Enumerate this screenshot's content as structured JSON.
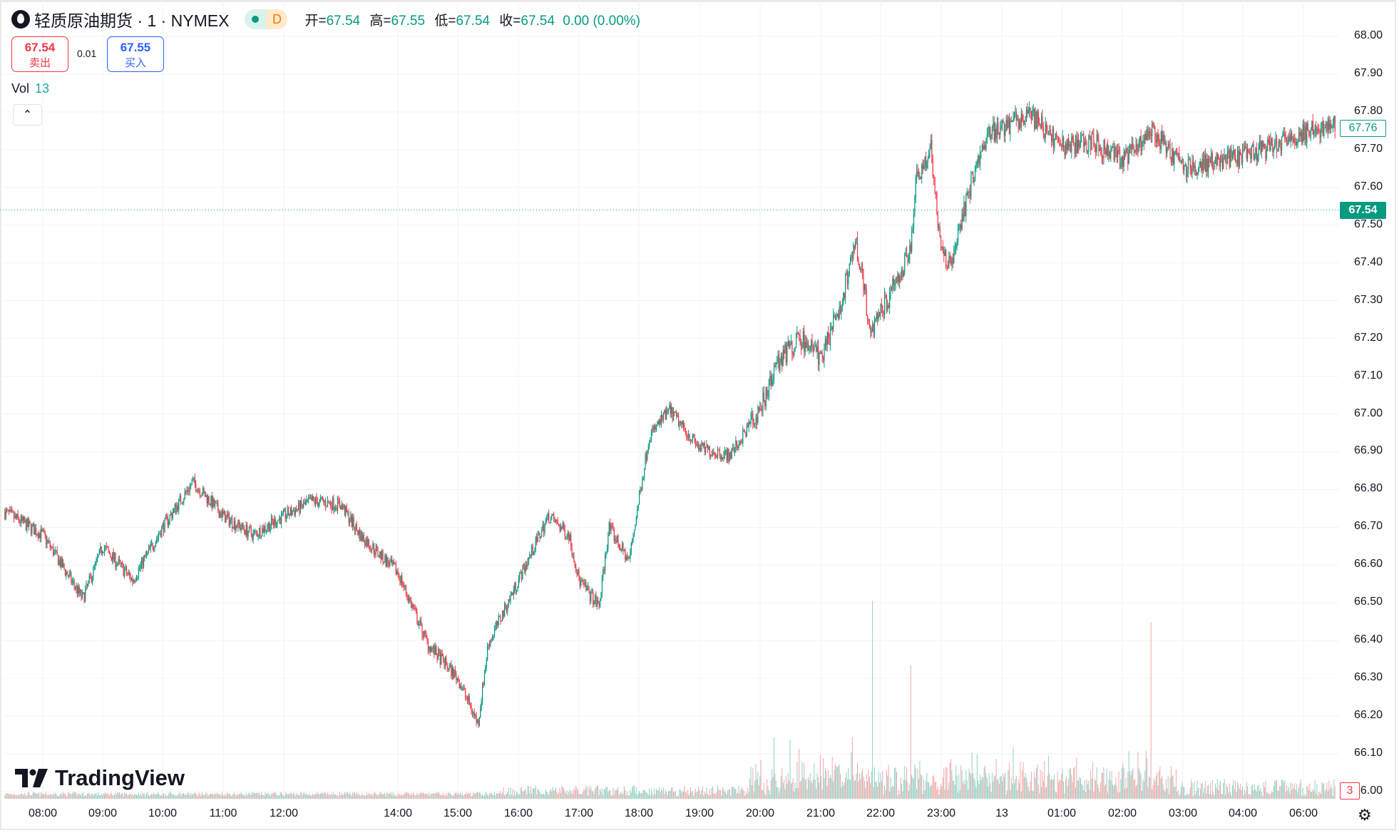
{
  "header": {
    "symbol_title": "轻质原油期货 · 1 · NYMEX",
    "market_status_icon": "market-open-dot",
    "data_badge": "D",
    "ohlc": [
      {
        "key": "开=",
        "value": "67.54"
      },
      {
        "key": "高=",
        "value": "67.55"
      },
      {
        "key": "低=",
        "value": "67.54"
      },
      {
        "key": "收=",
        "value": "67.54"
      }
    ],
    "change": "0.00 (0.00%)"
  },
  "trade": {
    "sell_price": "67.54",
    "sell_label": "卖出",
    "spread": "0.01",
    "buy_price": "67.55",
    "buy_label": "买入"
  },
  "volume_legend": {
    "label": "Vol",
    "value": "13"
  },
  "collapse_icon": "chevron-up-icon",
  "brand": "TradingView",
  "colors": {
    "up": "#089981",
    "down": "#f23645",
    "vol_up": "#8fd0c4",
    "vol_down": "#f2a7a7",
    "accent": "#089981"
  },
  "price_axis": [
    "68.00",
    "67.90",
    "67.80",
    "67.70",
    "67.60",
    "67.50",
    "67.40",
    "67.30",
    "67.20",
    "67.10",
    "67.00",
    "66.90",
    "66.80",
    "66.70",
    "66.60",
    "66.50",
    "66.40",
    "66.30",
    "66.20",
    "66.10",
    "66.00"
  ],
  "time_axis": [
    "08:00",
    "09:00",
    "10:00",
    "11:00",
    "12:00",
    "14:00",
    "15:00",
    "16:00",
    "17:00",
    "18:00",
    "19:00",
    "20:00",
    "21:00",
    "22:00",
    "23:00",
    "13",
    "01:00",
    "02:00",
    "03:00",
    "04:00",
    "06:00"
  ],
  "last_price_tag": "67.54",
  "crosshair_price_tag": "67.76",
  "volume_tag": "3",
  "chart_data": {
    "type": "candlestick",
    "interval": "1 minute",
    "ylim": [
      66.0,
      68.0
    ],
    "grid": true,
    "last_price": 67.54,
    "price_path": [
      [
        "07:22",
        66.74
      ],
      [
        "08:00",
        66.68
      ],
      [
        "08:40",
        66.51
      ],
      [
        "09:00",
        66.65
      ],
      [
        "09:30",
        66.56
      ],
      [
        "10:00",
        66.7
      ],
      [
        "10:30",
        66.82
      ],
      [
        "11:00",
        66.73
      ],
      [
        "11:30",
        66.68
      ],
      [
        "12:00",
        66.73
      ],
      [
        "12:30",
        66.77
      ],
      [
        "13:00",
        66.76
      ],
      [
        "13:20",
        66.68
      ],
      [
        "14:00",
        66.58
      ],
      [
        "14:30",
        66.39
      ],
      [
        "15:00",
        66.3
      ],
      [
        "15:20",
        66.18
      ],
      [
        "15:30",
        66.39
      ],
      [
        "16:00",
        66.56
      ],
      [
        "16:30",
        66.73
      ],
      [
        "16:50",
        66.68
      ],
      [
        "17:00",
        66.56
      ],
      [
        "17:20",
        66.49
      ],
      [
        "17:30",
        66.7
      ],
      [
        "17:50",
        66.61
      ],
      [
        "18:10",
        66.94
      ],
      [
        "18:30",
        67.01
      ],
      [
        "19:00",
        66.91
      ],
      [
        "19:30",
        66.89
      ],
      [
        "20:00",
        67.01
      ],
      [
        "20:20",
        67.15
      ],
      [
        "20:40",
        67.2
      ],
      [
        "21:00",
        67.15
      ],
      [
        "21:20",
        67.29
      ],
      [
        "21:35",
        67.46
      ],
      [
        "21:50",
        67.22
      ],
      [
        "22:10",
        67.32
      ],
      [
        "22:30",
        67.43
      ],
      [
        "22:35",
        67.62
      ],
      [
        "22:50",
        67.7
      ],
      [
        "23:00",
        67.43
      ],
      [
        "23:10",
        67.39
      ],
      [
        "23:30",
        67.62
      ],
      [
        "23:45",
        67.74
      ],
      [
        "00:10",
        67.77
      ],
      [
        "00:30",
        67.79
      ],
      [
        "01:00",
        67.71
      ],
      [
        "01:30",
        67.72
      ],
      [
        "02:00",
        67.67
      ],
      [
        "02:30",
        67.75
      ],
      [
        "03:00",
        67.65
      ],
      [
        "03:30",
        67.67
      ],
      [
        "04:00",
        67.68
      ],
      [
        "04:30",
        67.71
      ],
      [
        "06:00",
        67.74
      ],
      [
        "06:30",
        67.77
      ],
      [
        "06:32",
        67.76
      ]
    ],
    "volume_spikes": [
      [
        "20:14",
        23
      ],
      [
        "20:30",
        22
      ],
      [
        "21:32",
        23
      ],
      [
        "21:52",
        74
      ],
      [
        "22:30",
        50
      ],
      [
        "02:28",
        66
      ]
    ]
  }
}
